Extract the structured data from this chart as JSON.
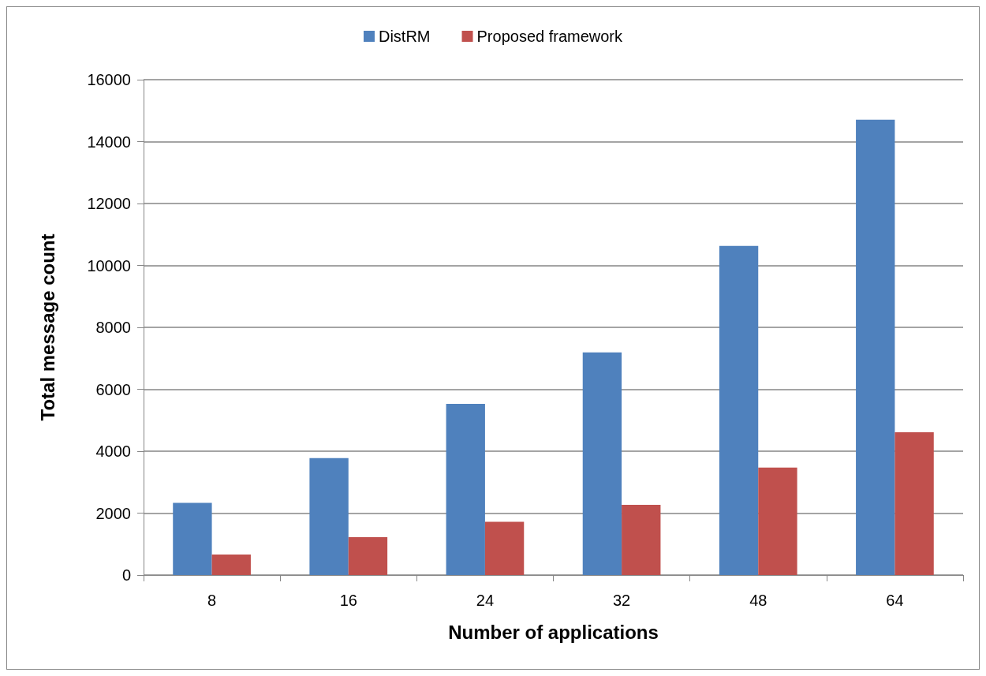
{
  "chart_data": {
    "type": "bar",
    "xlabel": "Number of applications",
    "ylabel": "Total message count",
    "categories": [
      "8",
      "16",
      "24",
      "32",
      "48",
      "64"
    ],
    "series": [
      {
        "name": "DistRM",
        "color": "#4f81bd",
        "values": [
          2330,
          3780,
          5530,
          7190,
          10630,
          14710
        ]
      },
      {
        "name": "Proposed framework",
        "color": "#c0504d",
        "values": [
          660,
          1220,
          1720,
          2270,
          3470,
          4610
        ]
      }
    ],
    "ylim": [
      0,
      16000
    ],
    "yticks": [
      0,
      2000,
      4000,
      6000,
      8000,
      10000,
      12000,
      14000,
      16000
    ],
    "grid": "y",
    "legend": "top"
  }
}
